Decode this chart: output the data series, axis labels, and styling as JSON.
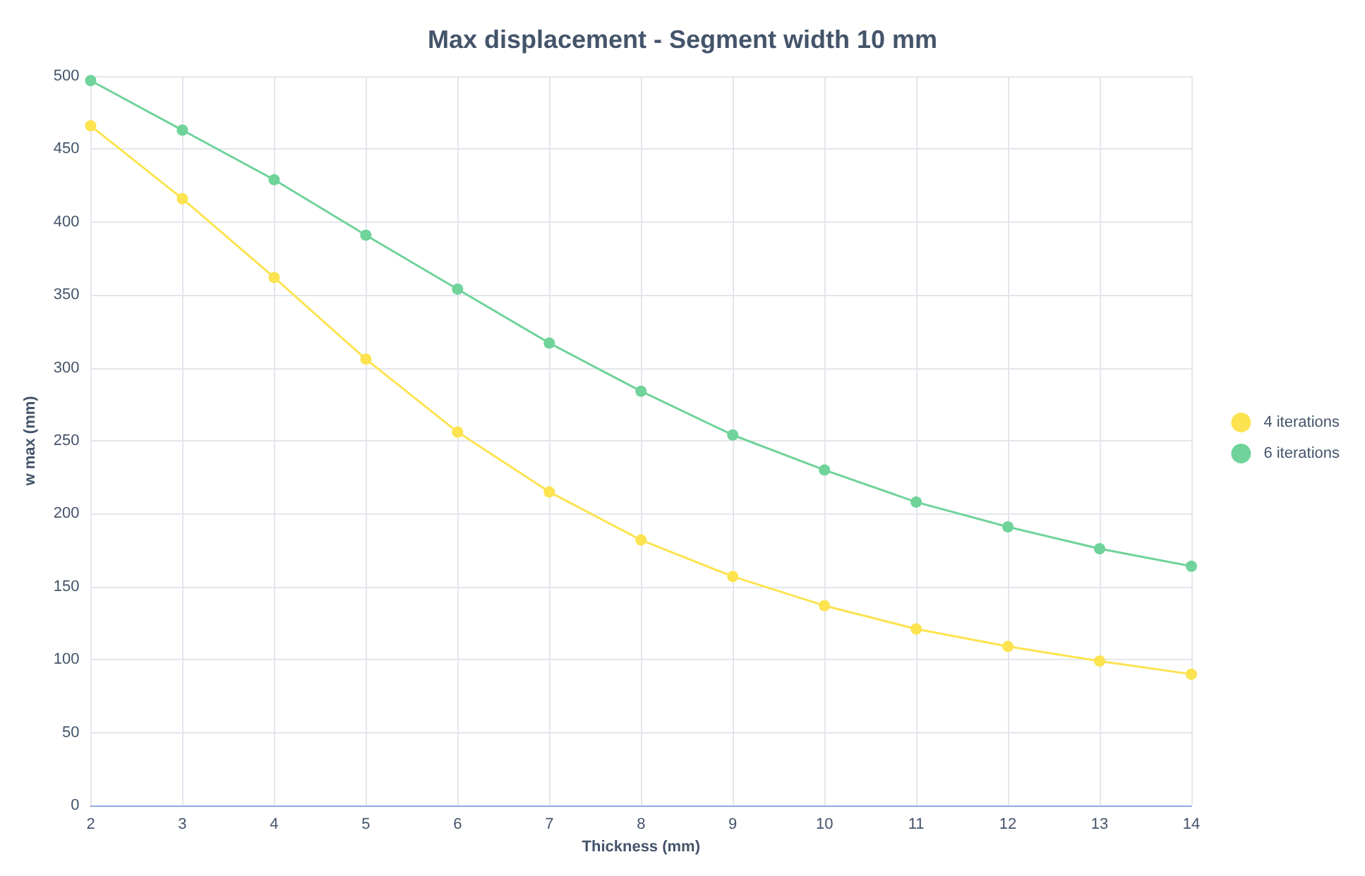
{
  "chart_data": {
    "type": "line",
    "title": "Max displacement - Segment width 10 mm",
    "xlabel": "Thickness (mm)",
    "ylabel": "w max (mm)",
    "x": [
      2,
      3,
      4,
      5,
      6,
      7,
      8,
      9,
      10,
      11,
      12,
      13,
      14
    ],
    "series": [
      {
        "name": "4 iterations",
        "color": "#fce34f",
        "values": [
          466,
          416,
          362,
          306,
          256,
          215,
          182,
          157,
          137,
          121,
          109,
          99,
          90
        ]
      },
      {
        "name": "6 iterations",
        "color": "#6fd39a",
        "values": [
          497,
          463,
          429,
          391,
          354,
          317,
          284,
          254,
          230,
          208,
          191,
          176,
          164
        ]
      }
    ],
    "xlim": [
      2,
      14
    ],
    "xticks": [
      2,
      3,
      4,
      5,
      6,
      7,
      8,
      9,
      10,
      11,
      12,
      13,
      14
    ],
    "ylim": [
      0,
      500
    ],
    "yticks": [
      0,
      50,
      100,
      150,
      200,
      250,
      300,
      350,
      400,
      450,
      500
    ],
    "grid": true,
    "legend": "right",
    "marker": "circle",
    "line_style": "solid"
  }
}
